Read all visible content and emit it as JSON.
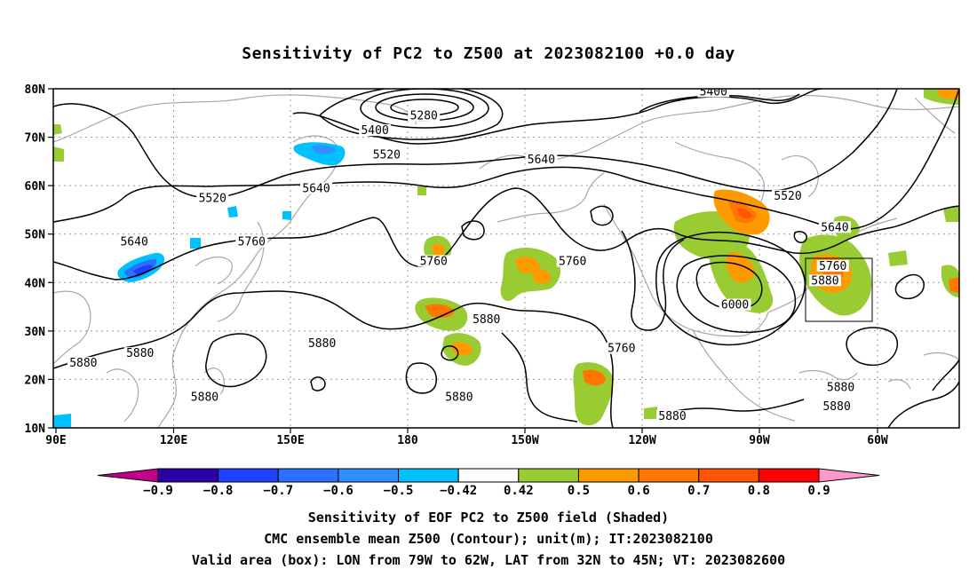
{
  "title": "Sensitivity of PC2 to Z500 at 2023082100 +0.0 day",
  "axes": {
    "lon_labels": [
      "90E",
      "120E",
      "150E",
      "180",
      "150W",
      "120W",
      "90W",
      "60W"
    ],
    "lat_labels": [
      "80N",
      "70N",
      "60N",
      "50N",
      "40N",
      "30N",
      "20N",
      "10N"
    ]
  },
  "colorbar": {
    "tick_labels": [
      "-0.9",
      "-0.8",
      "-0.7",
      "-0.6",
      "-0.5",
      "-0.42",
      "0.42",
      "0.5",
      "0.6",
      "0.7",
      "0.8",
      "0.9"
    ],
    "colors": [
      "#2a00a8",
      "#2040ff",
      "#2c70ff",
      "#3090ff",
      "#00c0ff",
      "#ffffff",
      "#99cc33",
      "#ff9900",
      "#ff7700",
      "#ff5500",
      "#ff0000"
    ],
    "under_color": "#c0008a",
    "over_color": "#ff99cc"
  },
  "contour_labels": [
    {
      "text": "5280",
      "lon": 184,
      "lat": 74
    },
    {
      "text": "5400",
      "lon": 171.5,
      "lat": 71
    },
    {
      "text": "5400",
      "lon": 258,
      "lat": 79
    },
    {
      "text": "5520",
      "lon": 174.5,
      "lat": 66
    },
    {
      "text": "5520",
      "lon": 130,
      "lat": 57
    },
    {
      "text": "5520",
      "lon": 277,
      "lat": 57.5
    },
    {
      "text": "5640",
      "lon": 110,
      "lat": 48
    },
    {
      "text": "5640",
      "lon": 156.5,
      "lat": 59
    },
    {
      "text": "5640",
      "lon": 214,
      "lat": 65
    },
    {
      "text": "5640",
      "lon": 289,
      "lat": 51
    },
    {
      "text": "5760",
      "lon": 140,
      "lat": 48
    },
    {
      "text": "5760",
      "lon": 186.5,
      "lat": 44
    },
    {
      "text": "5760",
      "lon": 222,
      "lat": 44
    },
    {
      "text": "5760",
      "lon": 234.5,
      "lat": 26
    },
    {
      "text": "5760",
      "lon": 288.5,
      "lat": 43
    },
    {
      "text": "5880",
      "lon": 111.5,
      "lat": 25
    },
    {
      "text": "5880",
      "lon": 158,
      "lat": 27
    },
    {
      "text": "5880",
      "lon": 97,
      "lat": 23
    },
    {
      "text": "5880",
      "lon": 128,
      "lat": 16
    },
    {
      "text": "5880",
      "lon": 200,
      "lat": 32
    },
    {
      "text": "5880",
      "lon": 193,
      "lat": 16
    },
    {
      "text": "5880",
      "lon": 247.5,
      "lat": 12
    },
    {
      "text": "5880",
      "lon": 290.5,
      "lat": 18
    },
    {
      "text": "5880",
      "lon": 289.5,
      "lat": 14
    },
    {
      "text": "5880",
      "lon": 286.5,
      "lat": 40
    },
    {
      "text": "6000",
      "lon": 263.5,
      "lat": 35
    }
  ],
  "footer": {
    "line1": "Sensitivity of EOF PC2 to Z500 field (Shaded)",
    "line2": "CMC ensemble mean Z500 (Contour); unit(m); IT:2023082100",
    "line3": "Valid area (box): LON from 79W to 62W, LAT from 32N to 45N; VT: 2023082600"
  }
}
